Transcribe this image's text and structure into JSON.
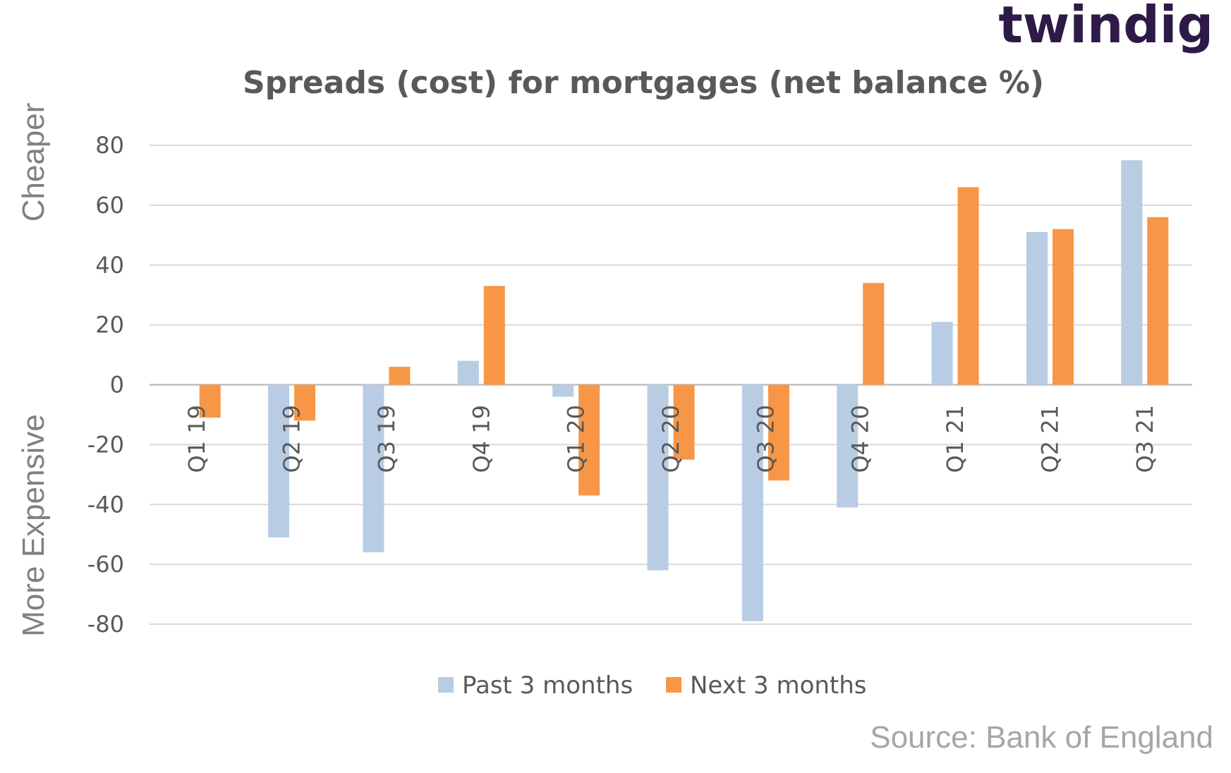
{
  "brand": {
    "logo_text": "twindig",
    "logo_color": "#2e1a47",
    "logo_accent": "#f29a3a"
  },
  "side_labels": {
    "upper": "Cheaper",
    "lower": "More Expensive"
  },
  "source": "Source: Bank of England",
  "chart_data": {
    "type": "bar",
    "title": "Spreads (cost) for mortgages (net balance %)",
    "categories": [
      "Q1 19",
      "Q2 19",
      "Q3 19",
      "Q4 19",
      "Q1 20",
      "Q2 20",
      "Q3 20",
      "Q4 20",
      "Q1 21",
      "Q2 21",
      "Q3 21"
    ],
    "series": [
      {
        "name": "Past 3 months",
        "color": "#b8cce4",
        "values": [
          0,
          -51,
          -56,
          8,
          -4,
          -62,
          -79,
          -41,
          21,
          51,
          75
        ]
      },
      {
        "name": "Next 3 months",
        "color": "#f79646",
        "values": [
          -11,
          -12,
          6,
          33,
          -37,
          -25,
          -32,
          34,
          66,
          52,
          56
        ]
      }
    ],
    "ylim": [
      -80,
      80
    ],
    "yticks": [
      80,
      60,
      40,
      20,
      0,
      -20,
      -40,
      -60,
      -80
    ],
    "grid": true,
    "legend": "bottom"
  }
}
